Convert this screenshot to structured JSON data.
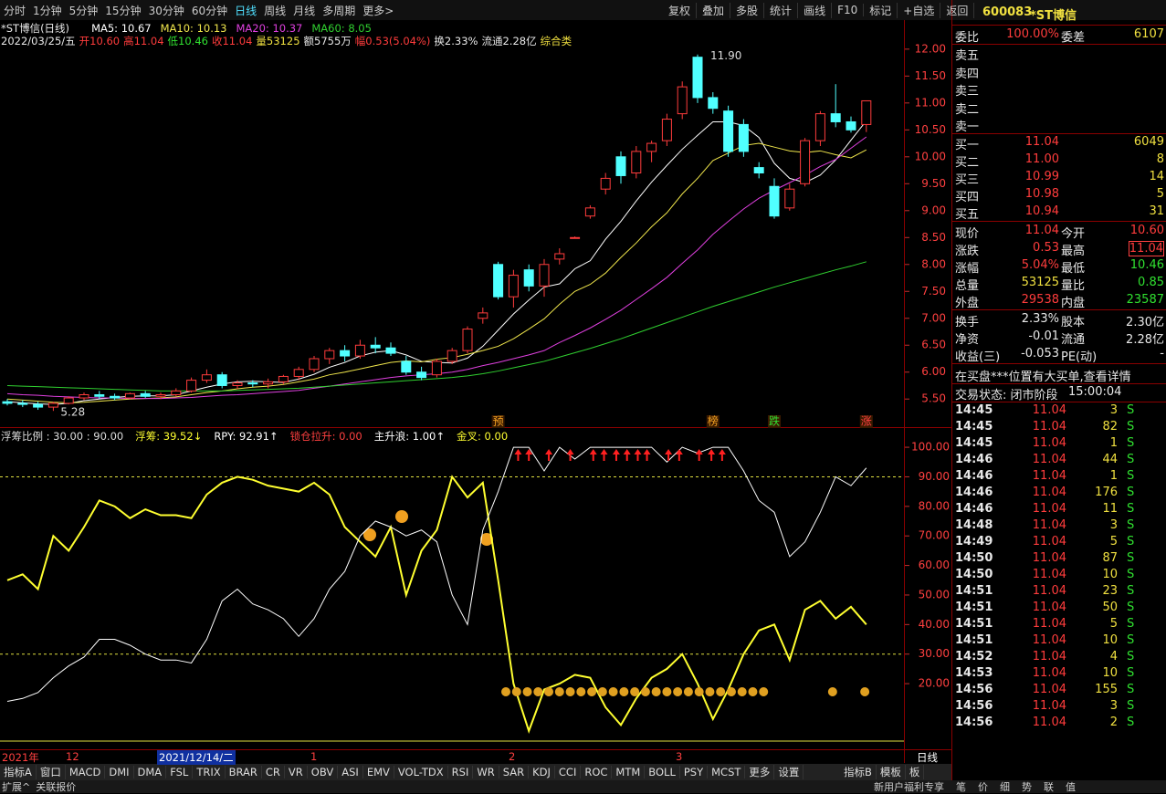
{
  "toolbar": {
    "left": [
      "分时",
      "1分钟",
      "5分钟",
      "15分钟",
      "30分钟",
      "60分钟",
      "日线",
      "周线",
      "月线",
      "多周期",
      "更多>"
    ],
    "right": [
      "复权",
      "叠加",
      "多股",
      "统计",
      "画线",
      "F10",
      "标记",
      "+自选",
      "返回"
    ]
  },
  "info": {
    "title": "*ST博信(日线)",
    "ma_labels": [
      "MA5: 10.67",
      "MA10: 10.13",
      "MA20: 10.37",
      "MA60: 8.05"
    ],
    "line": [
      "2022/03/25/五",
      "开10.60",
      "高11.04",
      "低10.46",
      "收11.04",
      "量53125",
      "额5755万",
      "幅0.53(5.04%)",
      "换2.33%",
      "流通2.28亿",
      "综合类"
    ]
  },
  "price_chart": {
    "ylim": [
      5.08,
      12.54
    ],
    "ticks": [
      {
        "value": 5.5,
        "label": "5.50"
      },
      {
        "value": 6,
        "label": "6.00"
      },
      {
        "value": 6.5,
        "label": "6.50"
      },
      {
        "value": 7,
        "label": "7.00"
      },
      {
        "value": 7.5,
        "label": "7.50"
      },
      {
        "value": 8,
        "label": "8.00"
      },
      {
        "value": 8.5,
        "label": "8.50"
      },
      {
        "value": 9,
        "label": "9.00"
      },
      {
        "value": 9.5,
        "label": "9.50"
      },
      {
        "value": 10,
        "label": "10.00"
      },
      {
        "value": 10.5,
        "label": "10.50"
      },
      {
        "value": 11,
        "label": "11.00"
      },
      {
        "value": 11.5,
        "label": "11.50"
      },
      {
        "value": 12,
        "label": "12.00"
      }
    ],
    "candles": {
      "open": [
        5.45,
        5.42,
        5.4,
        5.35,
        5.42,
        5.52,
        5.58,
        5.55,
        5.52,
        5.6,
        5.55,
        5.58,
        5.65,
        5.85,
        5.95,
        5.75,
        5.8,
        5.78,
        5.82,
        5.92,
        6.05,
        6.25,
        6.4,
        6.3,
        6.5,
        6.45,
        6.2,
        6.0,
        5.95,
        6.2,
        6.4,
        7.0,
        8.0,
        7.4,
        7.9,
        7.6,
        8.1,
        8.5,
        8.9,
        9.4,
        10.0,
        9.7,
        10.1,
        10.3,
        10.8,
        11.85,
        11.1,
        10.85,
        10.6,
        9.8,
        9.45,
        9.05,
        9.5,
        10.3,
        10.8,
        10.65,
        10.6
      ],
      "high": [
        5.5,
        5.48,
        5.45,
        5.45,
        5.55,
        5.62,
        5.65,
        5.6,
        5.62,
        5.65,
        5.62,
        5.7,
        5.9,
        6.05,
        6.0,
        5.85,
        5.85,
        5.88,
        5.95,
        6.1,
        6.3,
        6.45,
        6.5,
        6.6,
        6.65,
        6.55,
        6.3,
        6.1,
        6.25,
        6.45,
        6.85,
        7.2,
        8.05,
        7.9,
        8.0,
        8.1,
        8.3,
        8.52,
        9.1,
        9.7,
        10.1,
        10.2,
        10.3,
        10.8,
        11.4,
        11.9,
        11.2,
        10.95,
        10.7,
        9.9,
        9.6,
        9.5,
        10.35,
        10.85,
        11.35,
        10.75,
        11.04
      ],
      "low": [
        5.38,
        5.35,
        5.3,
        5.28,
        5.4,
        5.48,
        5.5,
        5.48,
        5.5,
        5.52,
        5.5,
        5.55,
        5.62,
        5.8,
        5.7,
        5.68,
        5.72,
        5.7,
        5.78,
        5.85,
        6.0,
        6.15,
        6.2,
        6.25,
        6.35,
        6.3,
        5.95,
        5.85,
        5.9,
        6.15,
        6.35,
        6.9,
        7.35,
        7.2,
        7.5,
        7.4,
        8.0,
        8.48,
        8.85,
        9.3,
        9.5,
        9.6,
        9.9,
        10.2,
        10.7,
        11.0,
        10.8,
        10.0,
        10.0,
        9.6,
        8.85,
        9.0,
        9.45,
        10.2,
        10.55,
        10.45,
        10.46
      ],
      "close": [
        5.42,
        5.4,
        5.35,
        5.42,
        5.52,
        5.58,
        5.55,
        5.52,
        5.6,
        5.55,
        5.58,
        5.65,
        5.85,
        5.95,
        5.75,
        5.8,
        5.78,
        5.82,
        5.92,
        6.05,
        6.25,
        6.4,
        6.3,
        6.5,
        6.45,
        6.35,
        6.0,
        5.9,
        6.2,
        6.4,
        6.8,
        7.1,
        7.4,
        7.8,
        7.6,
        8.0,
        8.2,
        8.5,
        9.05,
        9.6,
        9.65,
        10.1,
        10.25,
        10.7,
        11.3,
        11.1,
        10.9,
        10.1,
        10.1,
        9.7,
        8.9,
        9.4,
        10.3,
        10.8,
        10.65,
        10.5,
        11.04
      ]
    },
    "ma": [
      {
        "label": "MA5: 10.67",
        "color": "#ffffff",
        "values": [
          5.45,
          5.43,
          5.41,
          5.4,
          5.42,
          5.47,
          5.5,
          5.53,
          5.55,
          5.56,
          5.56,
          5.58,
          5.65,
          5.72,
          5.78,
          5.82,
          5.83,
          5.82,
          5.81,
          5.87,
          5.96,
          6.09,
          6.18,
          6.3,
          6.37,
          6.4,
          6.32,
          6.2,
          6.18,
          6.17,
          6.26,
          6.48,
          6.78,
          7.08,
          7.34,
          7.58,
          7.64,
          7.92,
          8.07,
          8.47,
          8.8,
          9.18,
          9.53,
          9.84,
          10.14,
          10.4,
          10.65,
          10.65,
          10.58,
          10.36,
          9.88,
          9.6,
          9.52,
          9.66,
          9.94,
          10.31,
          10.67
        ]
      },
      {
        "label": "MA10: 10.13",
        "color": "#f0e64c",
        "values": [
          5.5,
          5.48,
          5.46,
          5.44,
          5.43,
          5.44,
          5.46,
          5.48,
          5.5,
          5.51,
          5.52,
          5.54,
          5.58,
          5.62,
          5.65,
          5.69,
          5.72,
          5.74,
          5.77,
          5.82,
          5.87,
          5.95,
          6.0,
          6.06,
          6.12,
          6.18,
          6.21,
          6.19,
          6.24,
          6.27,
          6.33,
          6.4,
          6.48,
          6.62,
          6.8,
          6.99,
          7.26,
          7.5,
          7.63,
          7.84,
          8.13,
          8.4,
          8.7,
          8.96,
          9.31,
          9.6,
          9.93,
          10.07,
          10.21,
          10.25,
          10.18,
          10.11,
          10.08,
          10.11,
          10.04,
          9.98,
          10.13
        ]
      },
      {
        "label": "MA20: 10.37",
        "color": "#e040e0",
        "values": [
          5.6,
          5.58,
          5.57,
          5.55,
          5.54,
          5.53,
          5.52,
          5.52,
          5.51,
          5.51,
          5.51,
          5.52,
          5.53,
          5.55,
          5.57,
          5.58,
          5.6,
          5.62,
          5.64,
          5.66,
          5.7,
          5.74,
          5.78,
          5.82,
          5.86,
          5.9,
          5.93,
          5.95,
          5.97,
          6.0,
          6.05,
          6.12,
          6.18,
          6.25,
          6.32,
          6.4,
          6.55,
          6.68,
          6.82,
          6.98,
          7.15,
          7.35,
          7.55,
          7.76,
          8.02,
          8.27,
          8.56,
          8.8,
          9.03,
          9.23,
          9.38,
          9.52,
          9.66,
          9.82,
          9.95,
          10.16,
          10.37
        ]
      },
      {
        "label": "MA60: 8.05",
        "color": "#30d030",
        "values": [
          5.75,
          5.74,
          5.73,
          5.72,
          5.71,
          5.7,
          5.69,
          5.68,
          5.67,
          5.66,
          5.65,
          5.65,
          5.65,
          5.65,
          5.65,
          5.66,
          5.67,
          5.68,
          5.69,
          5.7,
          5.72,
          5.74,
          5.76,
          5.78,
          5.8,
          5.82,
          5.84,
          5.86,
          5.88,
          5.9,
          5.93,
          5.97,
          6.02,
          6.08,
          6.14,
          6.2,
          6.28,
          6.36,
          6.44,
          6.53,
          6.62,
          6.72,
          6.82,
          6.92,
          7.02,
          7.12,
          7.22,
          7.31,
          7.4,
          7.49,
          7.58,
          7.66,
          7.74,
          7.82,
          7.9,
          7.97,
          8.05
        ]
      }
    ],
    "high_label": "11.90",
    "low_label": "5.28",
    "markers": [
      "预",
      "榜",
      "跌",
      "涨"
    ]
  },
  "indicator": {
    "legend": [
      "浮筹比例 : 30.00 : 90.00",
      "浮筹: 39.52↓",
      "RPY: 92.91↑",
      "锁仓拉升: 0.00",
      "主升浪: 1.00↑",
      "金叉: 0.00"
    ],
    "ylim": [
      -1.9,
      106.2
    ],
    "levels": [
      30,
      90
    ],
    "ticks": [
      {
        "value": 20,
        "label": "20.00"
      },
      {
        "value": 30,
        "label": "30.00"
      },
      {
        "value": 40,
        "label": "40.00"
      },
      {
        "value": 50,
        "label": "50.00"
      },
      {
        "value": 60,
        "label": "60.00"
      },
      {
        "value": 70,
        "label": "70.00"
      },
      {
        "value": 80,
        "label": "80.00"
      },
      {
        "value": 90,
        "label": "90.00"
      },
      {
        "value": 100,
        "label": "100.00"
      }
    ],
    "series": [
      {
        "color": "#ffff30",
        "values": [
          55,
          57,
          52,
          70,
          65,
          73,
          82,
          80,
          76,
          79,
          77,
          77,
          76,
          84,
          88,
          90,
          89,
          87,
          86,
          85,
          88,
          84,
          73,
          68,
          63,
          73,
          50,
          65,
          72,
          90,
          83,
          88,
          55,
          20,
          4,
          18,
          20,
          23,
          22,
          12,
          6,
          15,
          22,
          25,
          30,
          20,
          8,
          18,
          30,
          38,
          40,
          28,
          45,
          48,
          42,
          46,
          40
        ]
      },
      {
        "color": "#ffffff",
        "values": [
          14,
          15,
          17,
          22,
          26,
          29,
          35,
          35,
          33,
          30,
          28,
          28,
          27,
          35,
          48,
          52,
          47,
          45,
          42,
          36,
          42,
          52,
          58,
          70,
          75,
          73,
          70,
          72,
          68,
          50,
          40,
          72,
          85,
          100,
          100,
          92,
          100,
          96,
          100,
          100,
          100,
          100,
          100,
          95,
          100,
          98,
          100,
          100,
          92,
          82,
          78,
          63,
          68,
          78,
          90,
          87,
          93
        ]
      }
    ]
  },
  "date_axis": [
    "2021年",
    "12",
    "2021/12/14/二",
    "1",
    "2",
    "3",
    "日线"
  ],
  "tabs": {
    "left": [
      "指标A",
      "窗口",
      "MACD",
      "DMI",
      "DMA",
      "FSL",
      "TRIX",
      "BRAR",
      "CR",
      "VR",
      "OBV",
      "ASI",
      "EMV",
      "VOL-TDX",
      "RSI",
      "WR",
      "SAR",
      "KDJ",
      "CCI",
      "ROC",
      "MTM",
      "BOLL",
      "PSY",
      "MCST",
      "更多",
      "设置"
    ],
    "right": [
      "指标B",
      "模板",
      "板"
    ]
  },
  "bottom": {
    "left": [
      "扩展^",
      "关联报价"
    ],
    "right": [
      "新用户福利专享",
      "笔",
      "价",
      "细",
      "势",
      "联",
      "值"
    ]
  },
  "quote": {
    "code": "600083",
    "name": "*ST博信",
    "weibi": [
      "委比",
      "100.00%",
      "委差",
      "6107"
    ],
    "asks": [
      "卖五",
      "卖四",
      "卖三",
      "卖二",
      "卖一"
    ],
    "bids": [
      [
        "买一",
        "11.04",
        "6049"
      ],
      [
        "买二",
        "11.00",
        "8"
      ],
      [
        "买三",
        "10.99",
        "14"
      ],
      [
        "买四",
        "10.98",
        "5"
      ],
      [
        "买五",
        "10.94",
        "31"
      ]
    ],
    "stats": [
      [
        "现价",
        "11.04",
        "今开",
        "10.60"
      ],
      [
        "涨跌",
        "0.53",
        "最高",
        "11.04"
      ],
      [
        "涨幅",
        "5.04%",
        "最低",
        "10.46"
      ],
      [
        "总量",
        "53125",
        "量比",
        "0.85"
      ],
      [
        "外盘",
        "29538",
        "内盘",
        "23587"
      ]
    ],
    "stats2": [
      [
        "换手",
        "2.33%",
        "股本",
        "2.30亿"
      ],
      [
        "净资",
        "-0.01",
        "流通",
        "2.28亿"
      ],
      [
        "收益(三)",
        "-0.053",
        "PE(动)",
        "-"
      ]
    ],
    "notice": "在买盘***位置有大买单,查看详情",
    "status": [
      "交易状态: 闭市阶段",
      "15:00:04"
    ],
    "trades": [
      [
        "14:45",
        "11.04",
        "3",
        "S"
      ],
      [
        "14:45",
        "11.04",
        "82",
        "S"
      ],
      [
        "14:45",
        "11.04",
        "1",
        "S"
      ],
      [
        "14:46",
        "11.04",
        "44",
        "S"
      ],
      [
        "14:46",
        "11.04",
        "1",
        "S"
      ],
      [
        "14:46",
        "11.04",
        "176",
        "S"
      ],
      [
        "14:46",
        "11.04",
        "11",
        "S"
      ],
      [
        "14:48",
        "11.04",
        "3",
        "S"
      ],
      [
        "14:49",
        "11.04",
        "5",
        "S"
      ],
      [
        "14:50",
        "11.04",
        "87",
        "S"
      ],
      [
        "14:50",
        "11.04",
        "10",
        "S"
      ],
      [
        "14:51",
        "11.04",
        "23",
        "S"
      ],
      [
        "14:51",
        "11.04",
        "50",
        "S"
      ],
      [
        "14:51",
        "11.04",
        "5",
        "S"
      ],
      [
        "14:51",
        "11.04",
        "10",
        "S"
      ],
      [
        "14:52",
        "11.04",
        "4",
        "S"
      ],
      [
        "14:53",
        "11.04",
        "10",
        "S"
      ],
      [
        "14:56",
        "11.04",
        "155",
        "S"
      ],
      [
        "14:56",
        "11.04",
        "3",
        "S"
      ],
      [
        "14:56",
        "11.04",
        "2",
        "S"
      ]
    ]
  }
}
